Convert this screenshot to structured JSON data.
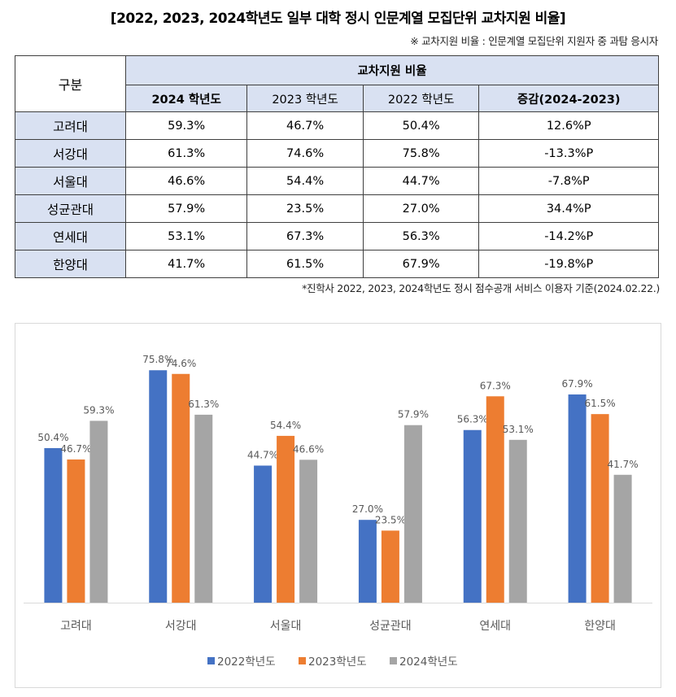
{
  "title": "[2022, 2023, 2024학년도 일부 대학 정시 인문계열 모집단위 교차지원 비율]",
  "note": "※ 교차지원 비율 : 인문계열 모집단위 지원자 중 과탐 응시자",
  "table": {
    "header_group": "구분",
    "header_ratio": "교차지원 비율",
    "columns": [
      "2024 학년도",
      "2023 학년도",
      "2022 학년도",
      "증감(2024-2023)"
    ],
    "rows": [
      {
        "university": "고려대",
        "y2024": "59.3%",
        "y2023": "46.7%",
        "y2022": "50.4%",
        "change": "12.6%P"
      },
      {
        "university": "서강대",
        "y2024": "61.3%",
        "y2023": "74.6%",
        "y2022": "75.8%",
        "change": "-13.3%P"
      },
      {
        "university": "서울대",
        "y2024": "46.6%",
        "y2023": "54.4%",
        "y2022": "44.7%",
        "change": "-7.8%P"
      },
      {
        "university": "성균관대",
        "y2024": "57.9%",
        "y2023": "23.5%",
        "y2022": "27.0%",
        "change": "34.4%P"
      },
      {
        "university": "연세대",
        "y2024": "53.1%",
        "y2023": "67.3%",
        "y2022": "56.3%",
        "change": "-14.2%P"
      },
      {
        "university": "한양대",
        "y2024": "41.7%",
        "y2023": "61.5%",
        "y2022": "67.9%",
        "change": "-19.8%P"
      }
    ]
  },
  "source": "*진학사 2022, 2023, 2024학년도 정시 점수공개 서비스 이용자 기준(2024.02.22.)",
  "chart_data": {
    "type": "bar",
    "title": "",
    "xlabel": "",
    "ylabel": "",
    "ylim": [
      0,
      80
    ],
    "grid": false,
    "legend_position": "bottom",
    "categories": [
      "고려대",
      "서강대",
      "서울대",
      "성균관대",
      "연세대",
      "한양대"
    ],
    "series": [
      {
        "name": "2022학년도",
        "color": "#4472c4",
        "values": [
          50.4,
          75.8,
          44.7,
          27.0,
          56.3,
          67.9
        ],
        "labels": [
          "50.4%",
          "75.8%",
          "44.7%",
          "27.0%",
          "56.3%",
          "67.9%"
        ]
      },
      {
        "name": "2023학년도",
        "color": "#ed7d31",
        "values": [
          46.7,
          74.6,
          54.4,
          23.5,
          67.3,
          61.5
        ],
        "labels": [
          "46.7%",
          "74.6%",
          "54.4%",
          "23.5%",
          "67.3%",
          "61.5%"
        ]
      },
      {
        "name": "2024학년도",
        "color": "#a5a5a5",
        "values": [
          59.3,
          61.3,
          46.6,
          57.9,
          53.1,
          41.7
        ],
        "labels": [
          "59.3%",
          "61.3%",
          "46.6%",
          "57.9%",
          "53.1%",
          "41.7%"
        ]
      }
    ]
  }
}
